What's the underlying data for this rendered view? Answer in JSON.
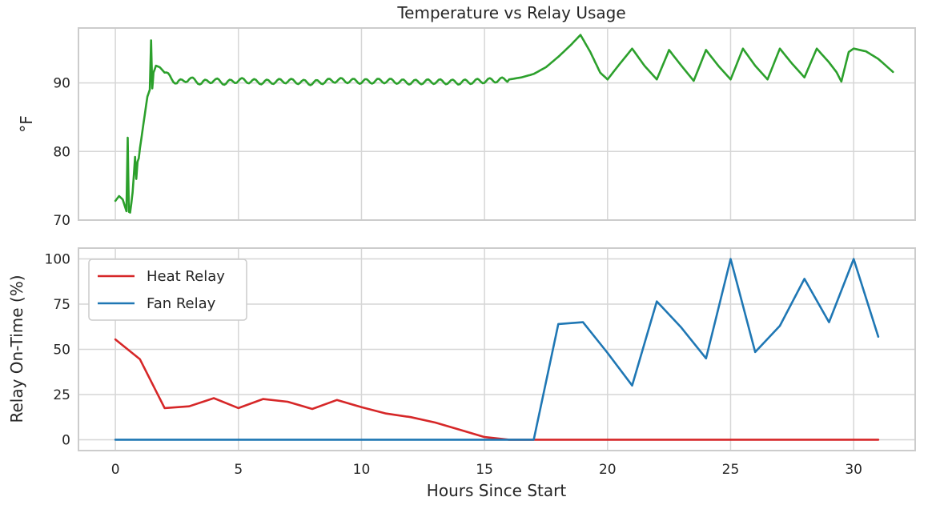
{
  "chart_data": {
    "type": "line",
    "title": "Temperature vs Relay Usage",
    "xlabel": "Hours Since Start",
    "xlim": [
      -1.5,
      32.5
    ],
    "xticks": [
      0,
      5,
      10,
      15,
      20,
      25,
      30
    ],
    "grid": true,
    "panels": [
      {
        "id": "temperature",
        "ylabel": "°F",
        "ylim": [
          70,
          98
        ],
        "yticks": [
          70,
          80,
          90
        ],
        "legend": null,
        "series": [
          {
            "color": "#2ca02c",
            "style": "noisy",
            "x": [
              0.0,
              0.15,
              0.3,
              0.45,
              0.5,
              0.55,
              0.6,
              0.65,
              0.7,
              0.8,
              0.85,
              0.9,
              0.95,
              1.0,
              1.1,
              1.2,
              1.3,
              1.4,
              1.45,
              1.5,
              1.55,
              1.65,
              1.8,
              2.0,
              2.5,
              3,
              3.5,
              4,
              4.5,
              5,
              6,
              7,
              8,
              9,
              10,
              11,
              12,
              13,
              14,
              15,
              16,
              16.5,
              17,
              17.5,
              18,
              18.5,
              18.9,
              19.3,
              19.7,
              20.0,
              20.5,
              21.0,
              21.5,
              22.0,
              22.5,
              23.0,
              23.5,
              24.0,
              24.5,
              25.0,
              25.5,
              26.0,
              26.5,
              27.0,
              27.5,
              28.0,
              28.5,
              29.0,
              29.3,
              29.5,
              29.8,
              30.0,
              30.5,
              31.0,
              31.6
            ],
            "values": [
              72.8,
              73.5,
              73.0,
              71.3,
              82.0,
              71.2,
              71.1,
              72.5,
              74.0,
              79.2,
              76.0,
              78.5,
              79.0,
              80.5,
              83.0,
              85.5,
              88.0,
              89.0,
              96.2,
              89.2,
              91.5,
              92.5,
              92.3,
              91.5,
              90.0,
              90.6,
              90.0,
              90.4,
              90.0,
              90.4,
              90.1,
              90.3,
              90.0,
              90.4,
              90.2,
              90.3,
              90.1,
              90.2,
              90.1,
              90.3,
              90.5,
              90.8,
              91.3,
              92.3,
              93.8,
              95.5,
              97.0,
              94.5,
              91.5,
              90.5,
              92.8,
              95.0,
              92.5,
              90.5,
              94.8,
              92.5,
              90.3,
              94.8,
              92.5,
              90.5,
              95.0,
              92.5,
              90.5,
              95.0,
              92.8,
              90.8,
              95.0,
              93.0,
              91.6,
              90.2,
              94.5,
              95.0,
              94.6,
              93.5,
              91.6
            ]
          }
        ]
      },
      {
        "id": "relay",
        "ylabel": "Relay On-Time (%)",
        "ylim": [
          -6,
          106
        ],
        "yticks": [
          0,
          25,
          50,
          75,
          100
        ],
        "legend": "upper left",
        "series": [
          {
            "name": "Heat Relay",
            "color": "#d62728",
            "x": [
              0,
              1,
              2,
              3,
              4,
              5,
              6,
              7,
              8,
              9,
              10,
              11,
              12,
              13,
              14,
              15,
              16,
              17,
              18,
              19,
              20,
              21,
              22,
              23,
              24,
              25,
              26,
              27,
              28,
              29,
              30,
              31
            ],
            "values": [
              55.5,
              44.5,
              17.5,
              18.5,
              23,
              17.5,
              22.5,
              21,
              17,
              22,
              18,
              14.5,
              12.5,
              9.5,
              5.5,
              1.5,
              0,
              0,
              0,
              0,
              0,
              0,
              0,
              0,
              0,
              0,
              0,
              0,
              0,
              0,
              0,
              0
            ]
          },
          {
            "name": "Fan Relay",
            "color": "#1f77b4",
            "x": [
              0,
              1,
              2,
              3,
              4,
              5,
              6,
              7,
              8,
              9,
              10,
              11,
              12,
              13,
              14,
              15,
              16,
              17,
              18,
              19,
              20,
              21,
              22,
              23,
              24,
              25,
              26,
              27,
              28,
              29,
              30,
              31
            ],
            "values": [
              0,
              0,
              0,
              0,
              0,
              0,
              0,
              0,
              0,
              0,
              0,
              0,
              0,
              0,
              0,
              0,
              0,
              0,
              64,
              65,
              48,
              30,
              76.5,
              62,
              45,
              100,
              48.5,
              63,
              89,
              65,
              100,
              57
            ]
          }
        ]
      }
    ]
  }
}
